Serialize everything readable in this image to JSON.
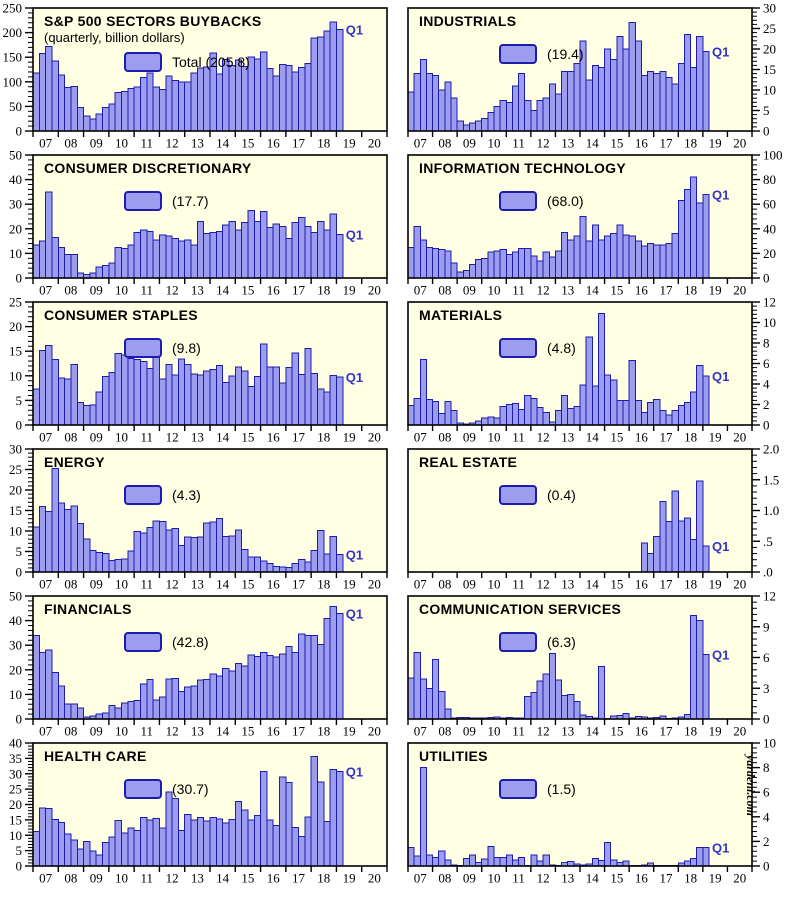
{
  "page": {
    "watermark": "yardeni.com",
    "annotation": "Q1"
  },
  "colors": {
    "plot_bg": "#FFFFE3",
    "bar_fill": "#9D9DEF",
    "bar_stroke": "#1C1CAD",
    "annotation": "#3333CC",
    "axis": "#000000"
  },
  "chart_data": [
    {
      "type": "bar",
      "title": "S&P 500 SECTORS BUYBACKS",
      "subtitle": "(quarterly, billion dollars)",
      "legend_label": "Total (205.8)",
      "latest_value": 205.8,
      "annotation": "Q1",
      "y_axis": {
        "side": "left",
        "min": 0,
        "max": 250,
        "step": 50,
        "labels": [
          "0",
          "50",
          "100",
          "150",
          "200",
          "250"
        ]
      },
      "x_labels": [
        "07",
        "08",
        "09",
        "10",
        "11",
        "12",
        "13",
        "14",
        "15",
        "16",
        "17",
        "18",
        "19",
        "20"
      ],
      "values": [
        118,
        158,
        172,
        142,
        114,
        88,
        90,
        48,
        31,
        24,
        35,
        48,
        55,
        78,
        80,
        86,
        89,
        109,
        118,
        89,
        84,
        112,
        103,
        100,
        100,
        118,
        128,
        130,
        159,
        116,
        145,
        133,
        144,
        131,
        150,
        146,
        161,
        127,
        112,
        135,
        133,
        120,
        129,
        137,
        189,
        191,
        203,
        222,
        206
      ]
    },
    {
      "type": "bar",
      "title": "INDUSTRIALS",
      "legend_label": "(19.4)",
      "latest_value": 19.4,
      "annotation": "Q1",
      "y_axis": {
        "side": "right",
        "min": 0,
        "max": 30,
        "step": 5,
        "labels": [
          "0",
          "5",
          "10",
          "15",
          "20",
          "25",
          "30"
        ]
      },
      "x_labels": [
        "07",
        "08",
        "09",
        "10",
        "11",
        "12",
        "13",
        "14",
        "15",
        "16",
        "17",
        "18",
        "19",
        "20"
      ],
      "values": [
        9.5,
        14,
        17.5,
        14,
        13.5,
        10,
        12,
        8,
        2.5,
        1.5,
        2,
        2.5,
        3,
        4.5,
        6,
        7.5,
        7,
        11,
        14,
        7.5,
        5,
        7.5,
        8,
        11.5,
        9,
        14.5,
        14.5,
        16.5,
        22,
        12.5,
        16,
        15.5,
        20,
        17.5,
        23,
        20,
        26.5,
        22,
        13.5,
        14.5,
        14,
        14.5,
        13,
        11.5,
        16.5,
        23.5,
        15.5,
        23,
        19.4
      ]
    },
    {
      "type": "bar",
      "title": "CONSUMER DISCRETIONARY",
      "legend_label": "(17.7)",
      "latest_value": 17.7,
      "annotation": "Q1",
      "y_axis": {
        "side": "left",
        "min": 0,
        "max": 50,
        "step": 10,
        "labels": [
          "0",
          "10",
          "20",
          "30",
          "40",
          "50"
        ]
      },
      "x_labels": [
        "07",
        "08",
        "09",
        "10",
        "11",
        "12",
        "13",
        "14",
        "15",
        "16",
        "17",
        "18",
        "19",
        "20"
      ],
      "values": [
        13.5,
        15,
        35,
        16.5,
        12.5,
        9.5,
        9.5,
        2,
        1.5,
        2,
        4.5,
        5,
        6,
        12.5,
        12,
        13.5,
        18.5,
        19.5,
        19,
        15.5,
        17.5,
        17,
        16,
        15,
        15.5,
        13.5,
        23,
        18,
        18.5,
        19,
        21.5,
        23,
        19.5,
        22.5,
        27.5,
        23,
        27,
        20.5,
        22,
        21,
        16,
        22.5,
        24.5,
        21,
        18.5,
        23,
        19.5,
        26,
        17.7
      ]
    },
    {
      "type": "bar",
      "title": "INFORMATION TECHNOLOGY",
      "legend_label": "(68.0)",
      "latest_value": 68.0,
      "annotation": "Q1",
      "y_axis": {
        "side": "right",
        "min": 0,
        "max": 100,
        "step": 20,
        "labels": [
          "0",
          "20",
          "40",
          "60",
          "80",
          "100"
        ]
      },
      "x_labels": [
        "07",
        "08",
        "09",
        "10",
        "11",
        "12",
        "13",
        "14",
        "15",
        "16",
        "17",
        "18",
        "19",
        "20"
      ],
      "values": [
        25,
        42,
        31,
        25,
        24,
        23,
        22,
        12,
        5,
        6,
        11,
        15,
        16,
        21,
        22,
        23,
        19,
        21,
        24,
        24,
        18,
        14,
        21,
        17,
        22,
        37,
        31,
        34,
        50,
        30,
        43,
        31,
        34,
        36,
        43,
        35,
        34,
        30,
        26,
        28,
        27,
        27,
        28,
        36,
        63,
        72,
        82,
        61,
        68
      ]
    },
    {
      "type": "bar",
      "title": "CONSUMER STAPLES",
      "legend_label": "(9.8)",
      "latest_value": 9.8,
      "annotation": "Q1",
      "y_axis": {
        "side": "left",
        "min": 0,
        "max": 25,
        "step": 5,
        "labels": [
          "0",
          "5",
          "10",
          "15",
          "20",
          "25"
        ]
      },
      "x_labels": [
        "07",
        "08",
        "09",
        "10",
        "11",
        "12",
        "13",
        "14",
        "15",
        "16",
        "17",
        "18",
        "19",
        "20"
      ],
      "values": [
        7.3,
        15.1,
        16.2,
        13.3,
        9.6,
        9.3,
        12.3,
        4.6,
        4.0,
        4.1,
        6.7,
        9.9,
        10.7,
        14.5,
        14.2,
        13.5,
        13.3,
        12.9,
        11.5,
        14.7,
        9.3,
        12.3,
        10.2,
        13.4,
        12.3,
        10.4,
        10.2,
        11.0,
        11.3,
        12.1,
        8.6,
        10.0,
        11.8,
        11.0,
        7.8,
        9.9,
        16.5,
        11.8,
        11.8,
        8.5,
        11.7,
        14.6,
        10.3,
        15.6,
        10.5,
        7.3,
        6.7,
        10.1,
        9.8
      ]
    },
    {
      "type": "bar",
      "title": "MATERIALS",
      "legend_label": "(4.8)",
      "latest_value": 4.8,
      "annotation": "Q1",
      "y_axis": {
        "side": "right",
        "min": 0,
        "max": 12,
        "step": 2,
        "labels": [
          "0",
          "2",
          "4",
          "6",
          "8",
          "10",
          "12"
        ]
      },
      "x_labels": [
        "07",
        "08",
        "09",
        "10",
        "11",
        "12",
        "13",
        "14",
        "15",
        "16",
        "17",
        "18",
        "19",
        "20"
      ],
      "values": [
        1.9,
        2.6,
        6.4,
        2.5,
        2.3,
        1.1,
        2.3,
        1.4,
        0.2,
        0.1,
        0.2,
        0.4,
        0.7,
        0.8,
        0.7,
        1.8,
        2.0,
        2.1,
        1.5,
        2.9,
        2.6,
        1.7,
        1.2,
        0.3,
        1.4,
        2.9,
        1.6,
        1.8,
        3.9,
        8.6,
        3.8,
        10.9,
        4.9,
        4.4,
        2.4,
        2.4,
        6.3,
        2.4,
        1.2,
        2.2,
        2.5,
        1.4,
        1.0,
        1.4,
        1.9,
        2.2,
        3.2,
        5.8,
        4.8
      ]
    },
    {
      "type": "bar",
      "title": "ENERGY",
      "legend_label": "(4.3)",
      "latest_value": 4.3,
      "annotation": "Q1",
      "y_axis": {
        "side": "left",
        "min": 0,
        "max": 30,
        "step": 5,
        "labels": [
          "0",
          "5",
          "10",
          "15",
          "20",
          "25",
          "30"
        ]
      },
      "x_labels": [
        "07",
        "08",
        "09",
        "10",
        "11",
        "12",
        "13",
        "14",
        "15",
        "16",
        "17",
        "18",
        "19",
        "20"
      ],
      "values": [
        11,
        16,
        14.8,
        25.3,
        16.8,
        15.3,
        16.1,
        11.8,
        8,
        5.3,
        4.8,
        4.5,
        2.8,
        3,
        3.2,
        5.1,
        9.9,
        9.5,
        10.9,
        12.5,
        12.3,
        10.2,
        10.6,
        6.5,
        8.5,
        8.4,
        8.5,
        11.9,
        12.2,
        13.1,
        8.7,
        8.8,
        10.3,
        5.5,
        3.6,
        3.7,
        2.7,
        2.1,
        1.3,
        1.2,
        1.1,
        2.1,
        3.1,
        2.4,
        5.2,
        10.1,
        4.4,
        8.7,
        4.3
      ]
    },
    {
      "type": "bar",
      "title": "REAL ESTATE",
      "legend_label": "(0.4)",
      "latest_value": 0.4,
      "annotation": "Q1",
      "y_axis": {
        "side": "right",
        "min": 0,
        "max": 2.0,
        "step": 0.5,
        "labels": [
          ".0",
          ".5",
          "1.0",
          "1.5",
          "2.0"
        ]
      },
      "x_labels": [
        "07",
        "08",
        "09",
        "10",
        "11",
        "12",
        "13",
        "14",
        "15",
        "16",
        "17",
        "18",
        "19",
        "20"
      ],
      "values": [
        0,
        0,
        0,
        0,
        0,
        0,
        0,
        0,
        0,
        0,
        0,
        0,
        0,
        0,
        0,
        0,
        0,
        0,
        0,
        0,
        0,
        0,
        0,
        0,
        0,
        0,
        0,
        0,
        0,
        0,
        0,
        0,
        0,
        0,
        0,
        0,
        0,
        0,
        0.47,
        0.3,
        0.58,
        1.15,
        0.82,
        1.32,
        0.83,
        0.88,
        0.53,
        1.48,
        0.42
      ]
    },
    {
      "type": "bar",
      "title": "FINANCIALS",
      "legend_label": "(42.8)",
      "latest_value": 42.8,
      "annotation": "Q1",
      "y_axis": {
        "side": "left",
        "min": 0,
        "max": 50,
        "step": 10,
        "labels": [
          "0",
          "10",
          "20",
          "30",
          "40",
          "50"
        ]
      },
      "x_labels": [
        "07",
        "08",
        "09",
        "10",
        "11",
        "12",
        "13",
        "14",
        "15",
        "16",
        "17",
        "18",
        "19",
        "20"
      ],
      "values": [
        34,
        27,
        28,
        19,
        13.5,
        6,
        6.2,
        4.5,
        0.8,
        1.2,
        2,
        2.5,
        5.5,
        4.5,
        6.5,
        7.2,
        7.5,
        14.2,
        16.1,
        7.8,
        9,
        16.3,
        16.5,
        11.2,
        13,
        13.5,
        15.8,
        16,
        18.2,
        17.5,
        20.5,
        19.5,
        22.5,
        21.5,
        26,
        25.5,
        27,
        25.8,
        25.3,
        26.5,
        29.5,
        27,
        34.5,
        34,
        34,
        30.2,
        40.8,
        45.8,
        42.8
      ]
    },
    {
      "type": "bar",
      "title": "COMMUNICATION SERVICES",
      "legend_label": "(6.3)",
      "latest_value": 6.3,
      "annotation": "Q1",
      "y_axis": {
        "side": "right",
        "min": 0,
        "max": 12,
        "step": 3,
        "labels": [
          "0",
          "3",
          "6",
          "9",
          "12"
        ]
      },
      "x_labels": [
        "07",
        "08",
        "09",
        "10",
        "11",
        "12",
        "13",
        "14",
        "15",
        "16",
        "17",
        "18",
        "19",
        "20"
      ],
      "values": [
        4.0,
        6.5,
        3.9,
        3.0,
        5.8,
        2.7,
        1.0,
        0.1,
        0.15,
        0.15,
        0.1,
        0.1,
        0.1,
        0.15,
        0.2,
        0.1,
        0.15,
        0.1,
        0.1,
        2.2,
        2.6,
        3.7,
        4.4,
        6.4,
        3.8,
        2.3,
        2.4,
        1.7,
        0.4,
        0.25,
        0.1,
        5.1,
        0.05,
        0.3,
        0.35,
        0.55,
        0.1,
        0.25,
        0.2,
        0.1,
        0.15,
        0.3,
        0.05,
        0.1,
        0.2,
        0.45,
        10.1,
        9.6,
        6.3
      ]
    },
    {
      "type": "bar",
      "title": "HEALTH CARE",
      "legend_label": "(30.7)",
      "latest_value": 30.7,
      "annotation": "Q1",
      "y_axis": {
        "side": "left",
        "min": 0,
        "max": 40,
        "step": 5,
        "labels": [
          "0",
          "5",
          "10",
          "15",
          "20",
          "25",
          "30",
          "35",
          "40"
        ]
      },
      "x_labels": [
        "07",
        "08",
        "09",
        "10",
        "11",
        "12",
        "13",
        "14",
        "15",
        "16",
        "17",
        "18",
        "19",
        "20"
      ],
      "values": [
        11.2,
        18.8,
        18.7,
        15.2,
        14.1,
        10.4,
        8.5,
        5.5,
        7.9,
        4.9,
        3.6,
        7.6,
        9.5,
        14.8,
        10.7,
        12.4,
        11.5,
        15.8,
        15.0,
        15.4,
        12.4,
        24.0,
        21.9,
        11.6,
        16.8,
        15.0,
        15.8,
        14.6,
        15.7,
        15.3,
        14.0,
        15.1,
        20.9,
        18.2,
        14.9,
        16.4,
        30.7,
        15.0,
        13.2,
        29.0,
        27.1,
        12.6,
        9.6,
        15.9,
        35.6,
        27.3,
        14.5,
        31.4,
        30.7
      ]
    },
    {
      "type": "bar",
      "title": "UTILITIES",
      "legend_label": "(1.5)",
      "latest_value": 1.5,
      "annotation": "Q1",
      "watermark": "yardeni.com",
      "y_axis": {
        "side": "right",
        "min": 0,
        "max": 10,
        "step": 2,
        "labels": [
          "0",
          "2",
          "4",
          "6",
          "8",
          "10"
        ]
      },
      "x_labels": [
        "07",
        "08",
        "09",
        "10",
        "11",
        "12",
        "13",
        "14",
        "15",
        "16",
        "17",
        "18",
        "19",
        "20"
      ],
      "values": [
        1.5,
        0.8,
        8.0,
        0.9,
        0.7,
        1.2,
        0.5,
        0.1,
        0.05,
        0.6,
        0.9,
        0.3,
        0.55,
        1.6,
        0.7,
        0.7,
        0.9,
        0.5,
        0.7,
        0.05,
        0.9,
        0.4,
        0.9,
        0.1,
        0.05,
        0.3,
        0.35,
        0.15,
        0.1,
        0.15,
        0.6,
        0.45,
        1.9,
        0.5,
        0.3,
        0.4,
        0.05,
        0.05,
        0.1,
        0.25,
        0.05,
        0.05,
        0.05,
        0.05,
        0.25,
        0.4,
        0.6,
        1.5,
        1.5
      ]
    }
  ]
}
